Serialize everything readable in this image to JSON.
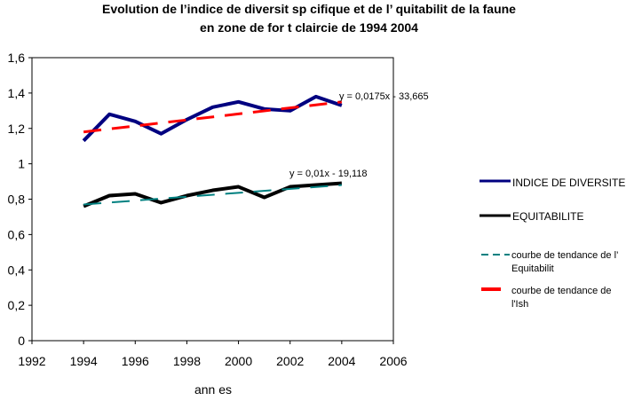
{
  "chart_data": {
    "type": "line",
    "title_line1": "Evolution de l’indice de diversit   sp  cifique et de l’  quitabilit    de la faune",
    "title_line2": "en zone de for  t   claircie de 1994    2004",
    "xlabel": "ann  es",
    "ylabel": "",
    "xlim": [
      1992,
      2006
    ],
    "ylim": [
      0,
      1.6
    ],
    "xticks": [
      "1992",
      "1994",
      "1996",
      "1998",
      "2000",
      "2002",
      "2004",
      "2006"
    ],
    "yticks": [
      "0",
      "0,2",
      "0,4",
      "0,6",
      "0,8",
      "1",
      "1,2",
      "1,4",
      "1,6"
    ],
    "x": [
      1994,
      1995,
      1996,
      1997,
      1998,
      1999,
      2000,
      2001,
      2002,
      2003,
      2004
    ],
    "series": [
      {
        "name": "INDICE DE DIVERSITE",
        "color": "#000080",
        "values": [
          1.13,
          1.28,
          1.24,
          1.17,
          1.25,
          1.32,
          1.35,
          1.31,
          1.3,
          1.38,
          1.33
        ]
      },
      {
        "name": "EQUITABILITE",
        "color": "#000000",
        "values": [
          0.76,
          0.82,
          0.83,
          0.78,
          0.82,
          0.85,
          0.87,
          0.81,
          0.87,
          0.88,
          0.89
        ]
      }
    ],
    "trendlines": [
      {
        "name": "courbe de tendance de l’ Equitabilit",
        "color": "#008080",
        "x": [
          1994,
          2004
        ],
        "values": [
          0.77,
          0.88
        ],
        "equation": "y = 0,01x - 19,118"
      },
      {
        "name": "courbe de tendance de l'Ish",
        "color": "#ff0000",
        "x": [
          1994,
          2004
        ],
        "values": [
          1.18,
          1.35
        ],
        "equation": "y = 0,0175x - 33,665"
      }
    ],
    "legend": {
      "placement": "right",
      "items": [
        "INDICE DE DIVERSITE",
        "EQUITABILITE",
        "courbe de tendance de l’",
        "Equitabilit",
        "courbe de tendance de",
        "l'Ish"
      ]
    },
    "grid": false
  }
}
